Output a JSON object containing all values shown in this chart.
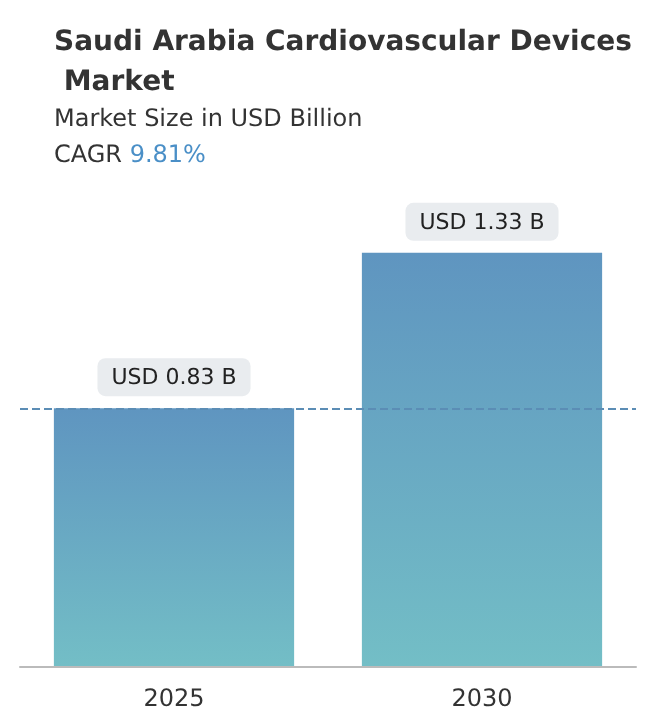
{
  "chart_data": {
    "type": "bar",
    "title": "Saudi Arabia Cardiovascular Devices Market",
    "subtitle": "Market Size in USD Billion",
    "annotations": [
      "CAGR 9.81%"
    ],
    "categories": [
      "2025",
      "2030"
    ],
    "values": [
      0.83,
      1.33
    ],
    "value_labels": [
      "USD 0.83 B",
      "USD 1.33 B"
    ],
    "color": "#5f95c0",
    "ref_lines": [
      {
        "axis": "y",
        "value": 0.83,
        "color": "#5b8db5",
        "line_style": "dashed"
      }
    ],
    "grid": false
  }
}
